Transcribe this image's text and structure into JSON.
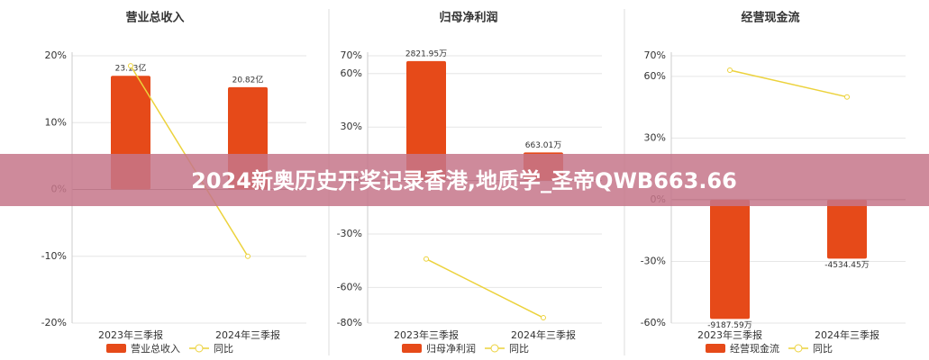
{
  "chart_data": [
    {
      "type": "combo",
      "title": "营业总收入",
      "categories": [
        "2023年三季报",
        "2024年三季报"
      ],
      "series": [
        {
          "name": "营业总收入",
          "type": "bar",
          "axis": "y2",
          "color": "#e64a19",
          "values": [
            23.13,
            20.82
          ],
          "value_labels": [
            "23.13亿",
            "20.82亿"
          ]
        },
        {
          "name": "同比",
          "type": "line",
          "color": "#ecd23c",
          "values": [
            18.5,
            -10
          ]
        }
      ],
      "ylim": [
        -20,
        20
      ],
      "yticks": [
        {
          "value": 20,
          "label": "20%"
        },
        {
          "value": 10,
          "label": "10%"
        },
        {
          "value": 0,
          "label": "0%"
        },
        {
          "value": -10,
          "label": "-10%"
        },
        {
          "value": -20,
          "label": "-20%"
        }
      ],
      "y2lim": [
        -27.2,
        27.2
      ],
      "grid": true
    },
    {
      "type": "combo",
      "title": "归母净利润",
      "categories": [
        "2023年三季报",
        "2024年三季报"
      ],
      "series": [
        {
          "name": "归母净利润",
          "type": "bar",
          "axis": "y2",
          "color": "#e64a19",
          "values": [
            2821.95,
            663.01
          ],
          "value_labels": [
            "2821.95万",
            "663.01万"
          ]
        },
        {
          "name": "同比",
          "type": "line",
          "color": "#ecd23c",
          "values": [
            -44,
            -77
          ]
        }
      ],
      "ylim": [
        -80,
        70
      ],
      "yticks": [
        {
          "value": 70,
          "label": "70%"
        },
        {
          "value": 60,
          "label": "60%"
        },
        {
          "value": 30,
          "label": "30%"
        },
        {
          "value": 0,
          "label": "0%"
        },
        {
          "value": -30,
          "label": "-30%"
        },
        {
          "value": -60,
          "label": "-60%"
        },
        {
          "value": -80,
          "label": "-80%"
        }
      ],
      "y2lim": [
        -3369,
        2948
      ],
      "grid": true
    },
    {
      "type": "combo",
      "title": "经营现金流",
      "categories": [
        "2023年三季报",
        "2024年三季报"
      ],
      "series": [
        {
          "name": "经营现金流",
          "type": "bar",
          "axis": "y2",
          "color": "#e64a19",
          "values": [
            -9187.59,
            -4534.45
          ],
          "value_labels": [
            "-9187.59万",
            "-4534.45万"
          ]
        },
        {
          "name": "同比",
          "type": "line",
          "color": "#ecd23c",
          "values": [
            63,
            50
          ]
        }
      ],
      "ylim": [
        -60,
        70
      ],
      "yticks": [
        {
          "value": 70,
          "label": "70%"
        },
        {
          "value": 60,
          "label": "60%"
        },
        {
          "value": 30,
          "label": "30%"
        },
        {
          "value": 0,
          "label": "0%"
        },
        {
          "value": -30,
          "label": "-30%"
        },
        {
          "value": -60,
          "label": "-60%"
        }
      ],
      "y2lim": [
        -9504,
        11088
      ],
      "grid": true
    }
  ],
  "banner": {
    "text": "2024新奥历史开奖记录香港,地质学_圣帝QWB663.66"
  }
}
